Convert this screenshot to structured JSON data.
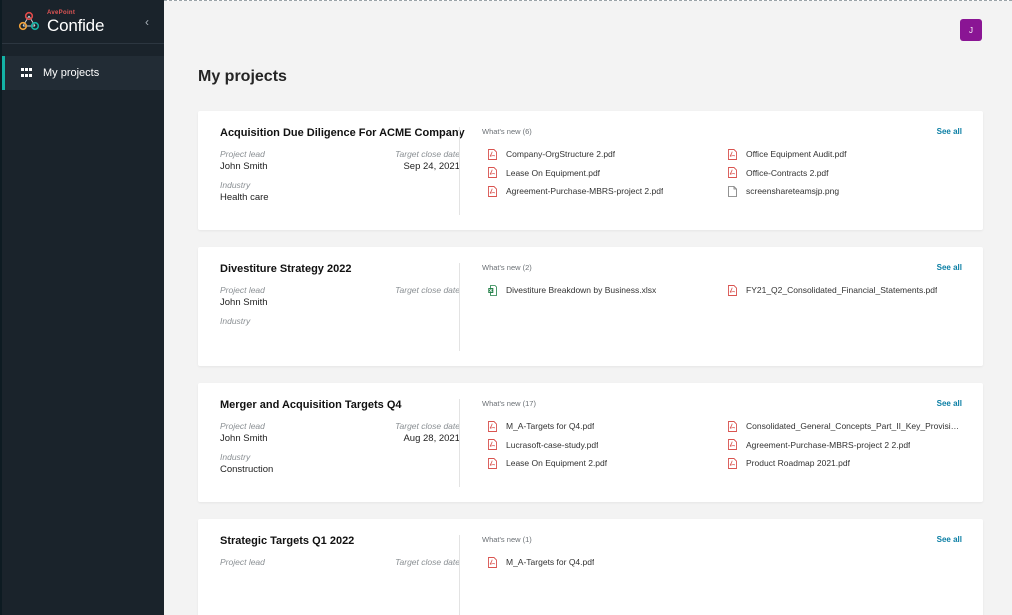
{
  "brand": {
    "vendor": "AvePoint",
    "product": "Confide"
  },
  "sidebar": {
    "collapse_icon": "chevron-left-icon",
    "nav_item_label": "My projects",
    "nav_icon": "grid-icon"
  },
  "header": {
    "avatar_initial": "J"
  },
  "page": {
    "title": "My projects"
  },
  "labels": {
    "project_lead": "Project lead",
    "target_close_date": "Target close date",
    "industry": "Industry",
    "see_all": "See all"
  },
  "colors": {
    "accent": "#14b3a6",
    "avatar": "#8a1594",
    "link": "#0a7ea4",
    "pdf": "#d9534f",
    "xlsx": "#1e7e45"
  },
  "projects": [
    {
      "title": "Acquisition Due Diligence For ACME Company",
      "lead": "John Smith",
      "close_date": "Sep 24, 2021",
      "industry": "Health care",
      "whats_new": "What's new (6)",
      "files": [
        {
          "name": "Company-OrgStructure 2.pdf",
          "type": "pdf"
        },
        {
          "name": "Office Equipment Audit.pdf",
          "type": "pdf"
        },
        {
          "name": "Lease On Equipment.pdf",
          "type": "pdf"
        },
        {
          "name": "Office-Contracts 2.pdf",
          "type": "pdf"
        },
        {
          "name": "Agreement-Purchase-MBRS-project 2.pdf",
          "type": "pdf"
        },
        {
          "name": "screenshareteamsjp.png",
          "type": "png"
        }
      ]
    },
    {
      "title": "Divestiture Strategy 2022",
      "lead": "John Smith",
      "close_date": "",
      "industry": "",
      "whats_new": "What's new (2)",
      "files": [
        {
          "name": "Divestiture Breakdown by Business.xlsx",
          "type": "xlsx"
        },
        {
          "name": "FY21_Q2_Consolidated_Financial_Statements.pdf",
          "type": "pdf"
        }
      ]
    },
    {
      "title": "Merger and Acquisition Targets Q4",
      "lead": "John Smith",
      "close_date": "Aug 28, 2021",
      "industry": "Construction",
      "whats_new": "What's new (17)",
      "files": [
        {
          "name": "M_A-Targets for Q4.pdf",
          "type": "pdf"
        },
        {
          "name": "Consolidated_General_Concepts_Part_II_Key_Provisio...",
          "type": "pdf"
        },
        {
          "name": "Lucrasoft-case-study.pdf",
          "type": "pdf"
        },
        {
          "name": "Agreement-Purchase-MBRS-project 2 2.pdf",
          "type": "pdf"
        },
        {
          "name": "Lease On Equipment 2.pdf",
          "type": "pdf"
        },
        {
          "name": "Product Roadmap 2021.pdf",
          "type": "pdf"
        }
      ]
    },
    {
      "title": "Strategic Targets Q1 2022",
      "lead": "",
      "close_date": "",
      "industry": "",
      "whats_new": "What's new (1)",
      "files": [
        {
          "name": "M_A-Targets for Q4.pdf",
          "type": "pdf"
        }
      ]
    }
  ]
}
